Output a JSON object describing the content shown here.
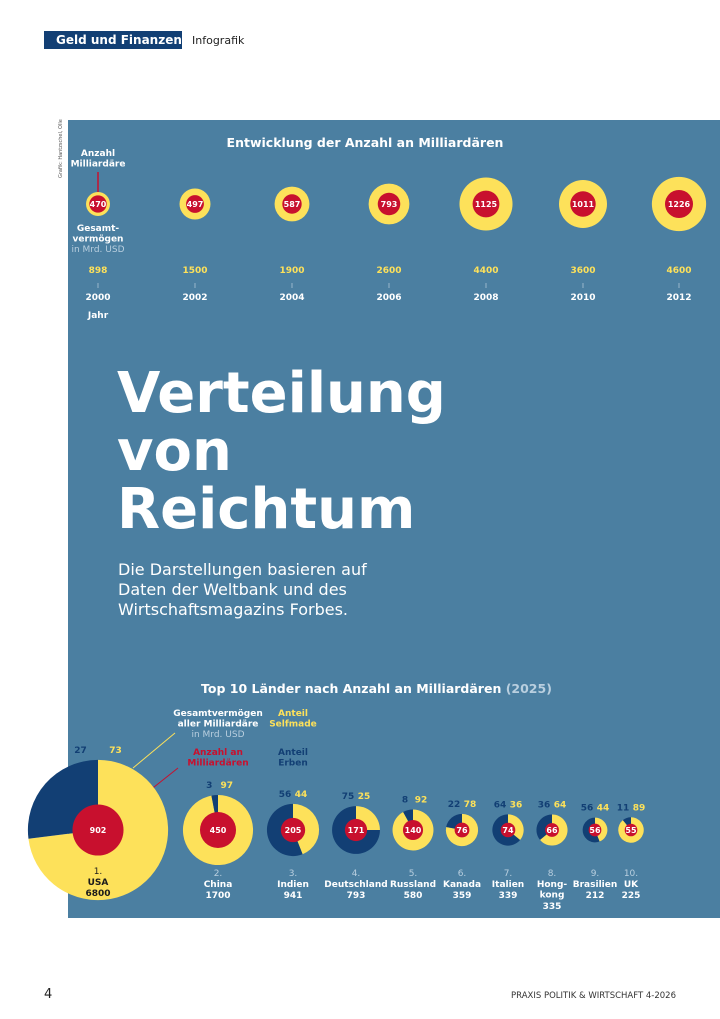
{
  "header": {
    "section": "Geld und Finanzen",
    "label": "Infografik"
  },
  "credit": "Grafik: Hantzschel, Olle",
  "timeline": {
    "title": "Entwicklung der Anzahl an Milliardären",
    "legend": {
      "count": "Anzahl\nMilliardäre",
      "wealth": "Gesamt-\nvermögen",
      "unit": "in Mrd. USD",
      "year": "Jahr"
    },
    "years": [
      "2000",
      "2002",
      "2004",
      "2006",
      "2008",
      "2010",
      "2012"
    ],
    "counts": [
      470,
      497,
      587,
      793,
      1125,
      1011,
      1226
    ],
    "wealth": [
      898,
      1500,
      1900,
      2600,
      4400,
      3600,
      4600
    ]
  },
  "headline": [
    "Verteilung",
    "von",
    "Reichtum"
  ],
  "intro": [
    "Die Darstellungen basieren auf",
    "Daten der Weltbank und des",
    "Wirtschaftsmagazins Forbes."
  ],
  "top10": {
    "title": "Top 10 Länder nach Anzahl an Milliardären",
    "year": "(2025)",
    "legend": {
      "wealth": "Gesamtvermögen\naller Milliardäre",
      "unit": "in Mrd. USD",
      "count": "Anzahl an\nMilliardären",
      "selfmade": "Anteil\nSelfmade",
      "inherited": "Anteil\nErben"
    },
    "countries": [
      {
        "rank": "1.",
        "name": "USA",
        "count": 902,
        "wealth": 6800,
        "inherited": 27,
        "selfmade": 73
      },
      {
        "rank": "2.",
        "name": "China",
        "count": 450,
        "wealth": 1700,
        "inherited": 3,
        "selfmade": 97
      },
      {
        "rank": "3.",
        "name": "Indien",
        "count": 205,
        "wealth": 941,
        "inherited": 56,
        "selfmade": 44
      },
      {
        "rank": "4.",
        "name": "Deutschland",
        "count": 171,
        "wealth": 793,
        "inherited": 75,
        "selfmade": 25
      },
      {
        "rank": "5.",
        "name": "Russland",
        "count": 140,
        "wealth": 580,
        "inherited": 8,
        "selfmade": 92
      },
      {
        "rank": "6.",
        "name": "Kanada",
        "count": 76,
        "wealth": 359,
        "inherited": 22,
        "selfmade": 78
      },
      {
        "rank": "7.",
        "name": "Italien",
        "count": 74,
        "wealth": 339,
        "inherited": 64,
        "selfmade": 36
      },
      {
        "rank": "8.",
        "name": "Hong-\nkong",
        "count": 66,
        "wealth": 335,
        "inherited": 36,
        "selfmade": 64
      },
      {
        "rank": "9.",
        "name": "Brasilien",
        "count": 56,
        "wealth": 212,
        "inherited": 56,
        "selfmade": 44
      },
      {
        "rank": "10.",
        "name": "UK",
        "count": 55,
        "wealth": 225,
        "inherited": 11,
        "selfmade": 89
      }
    ]
  },
  "footer": {
    "page": "4",
    "publication": "PRAXIS POLITIK & WIRTSCHAFT 4-2026"
  }
}
